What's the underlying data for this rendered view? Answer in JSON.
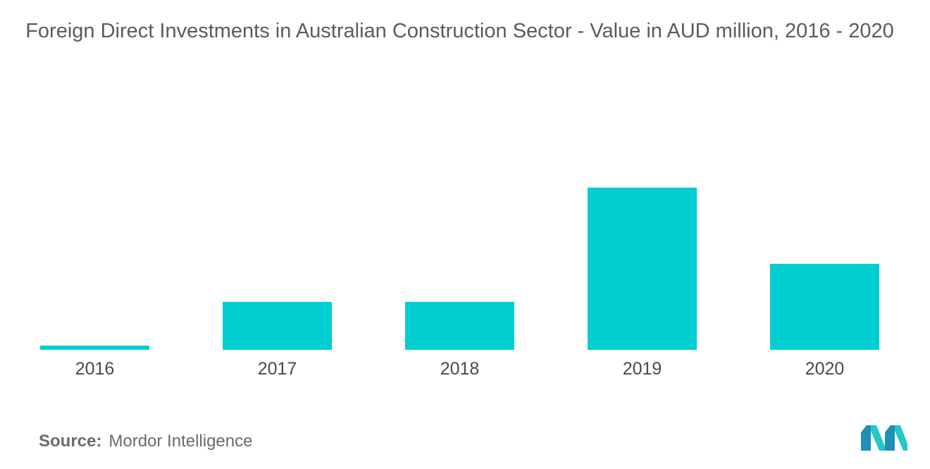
{
  "colors": {
    "bar": "#00CED1",
    "logo_dark": "#1f8fb8",
    "logo_light": "#25c7c7"
  },
  "chart_data": {
    "type": "bar",
    "title": "Foreign Direct Investments in Australian Construction Sector - Value in AUD million, 2016 - 2020",
    "categories": [
      "2016",
      "2017",
      "2018",
      "2019",
      "2020"
    ],
    "values": [
      6,
      68,
      68,
      230,
      122
    ],
    "ylim": [
      0,
      230
    ],
    "xlabel": "",
    "ylabel": "",
    "grid": false,
    "legend": "none"
  },
  "source": {
    "label": "Source:",
    "value": "Mordor Intelligence"
  },
  "logo": {
    "icon": "mordor-intelligence-logo"
  }
}
